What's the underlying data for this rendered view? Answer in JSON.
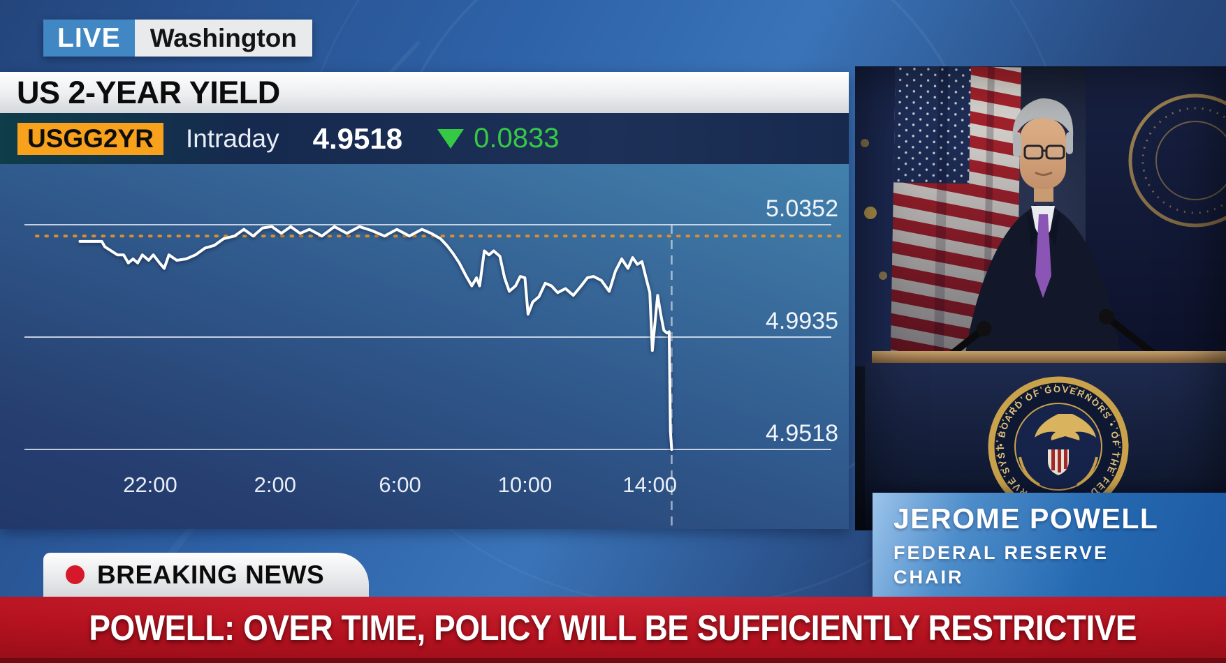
{
  "live_badge": {
    "live_label": "LIVE",
    "location": "Washington"
  },
  "chart_panel": {
    "title": "US 2-YEAR YIELD",
    "ticker_symbol": "USGG2YR",
    "series_mode": "Intraday",
    "last_price": "4.9518",
    "change": "0.0833",
    "change_direction": "down"
  },
  "chart_data": {
    "type": "line",
    "title": "US 2-YEAR YIELD (USGG2YR) Intraday",
    "legend": [
      "USGG2YR"
    ],
    "grid": "horizontal",
    "x_tick_labels": [
      "22:00",
      "2:00",
      "6:00",
      "10:00",
      "14:00"
    ],
    "x_tick_hours": [
      -2,
      2,
      6,
      10,
      14
    ],
    "y_tick_labels": [
      "5.0352",
      "4.9935",
      "4.9518"
    ],
    "y_ticks": [
      5.0352,
      4.9935,
      4.9518
    ],
    "ylim": [
      4.945,
      5.045
    ],
    "reference_dotted_level": 5.031,
    "last_value": 4.9518,
    "change_value": -0.0833,
    "series": [
      {
        "name": "USGG2YR",
        "points": [
          [
            -4.25,
            5.029
          ],
          [
            -3.55,
            5.029
          ],
          [
            -3.45,
            5.027
          ],
          [
            -3.05,
            5.024
          ],
          [
            -2.85,
            5.024
          ],
          [
            -2.7,
            5.021
          ],
          [
            -2.55,
            5.0225
          ],
          [
            -2.4,
            5.021
          ],
          [
            -2.25,
            5.024
          ],
          [
            -2.05,
            5.022
          ],
          [
            -1.9,
            5.024
          ],
          [
            -1.7,
            5.021
          ],
          [
            -1.55,
            5.019
          ],
          [
            -1.4,
            5.024
          ],
          [
            -1.15,
            5.022
          ],
          [
            -0.85,
            5.0225
          ],
          [
            -0.55,
            5.024
          ],
          [
            -0.25,
            5.0265
          ],
          [
            0.05,
            5.0275
          ],
          [
            0.35,
            5.03
          ],
          [
            0.7,
            5.031
          ],
          [
            1.0,
            5.0335
          ],
          [
            1.3,
            5.031
          ],
          [
            1.6,
            5.034
          ],
          [
            1.9,
            5.0345
          ],
          [
            2.2,
            5.032
          ],
          [
            2.5,
            5.0345
          ],
          [
            2.8,
            5.032
          ],
          [
            3.1,
            5.0335
          ],
          [
            3.5,
            5.031
          ],
          [
            3.9,
            5.0345
          ],
          [
            4.3,
            5.032
          ],
          [
            4.7,
            5.0345
          ],
          [
            5.1,
            5.033
          ],
          [
            5.5,
            5.031
          ],
          [
            5.9,
            5.0335
          ],
          [
            6.3,
            5.031
          ],
          [
            6.7,
            5.0335
          ],
          [
            7.0,
            5.032
          ],
          [
            7.3,
            5.03
          ],
          [
            7.5,
            5.0275
          ],
          [
            7.7,
            5.0245
          ],
          [
            7.9,
            5.021
          ],
          [
            8.1,
            5.0165
          ],
          [
            8.3,
            5.0125
          ],
          [
            8.45,
            5.0155
          ],
          [
            8.55,
            5.0125
          ],
          [
            8.7,
            5.0255
          ],
          [
            8.85,
            5.024
          ],
          [
            9.0,
            5.0255
          ],
          [
            9.2,
            5.0235
          ],
          [
            9.35,
            5.0155
          ],
          [
            9.5,
            5.0105
          ],
          [
            9.7,
            5.0125
          ],
          [
            9.85,
            5.016
          ],
          [
            10.0,
            5.0155
          ],
          [
            10.1,
            5.002
          ],
          [
            10.25,
            5.0065
          ],
          [
            10.45,
            5.0085
          ],
          [
            10.65,
            5.0135
          ],
          [
            10.85,
            5.0125
          ],
          [
            11.05,
            5.01
          ],
          [
            11.3,
            5.0115
          ],
          [
            11.55,
            5.009
          ],
          [
            11.8,
            5.0125
          ],
          [
            12.0,
            5.0155
          ],
          [
            12.2,
            5.016
          ],
          [
            12.45,
            5.0145
          ],
          [
            12.7,
            5.0105
          ],
          [
            12.9,
            5.018
          ],
          [
            13.1,
            5.0225
          ],
          [
            13.3,
            5.019
          ],
          [
            13.45,
            5.023
          ],
          [
            13.6,
            5.0205
          ],
          [
            13.75,
            5.0215
          ],
          [
            13.9,
            5.0145
          ],
          [
            14.0,
            5.01
          ],
          [
            14.08,
            4.9885
          ],
          [
            14.25,
            5.009
          ],
          [
            14.35,
            5.002
          ],
          [
            14.45,
            4.996
          ],
          [
            14.55,
            4.995
          ],
          [
            14.62,
            4.9955
          ],
          [
            14.66,
            4.9585
          ],
          [
            14.7,
            4.9518
          ]
        ]
      }
    ]
  },
  "video_panel": {
    "speaker_name": "JEROME POWELL",
    "speaker_title": "FEDERAL RESERVE",
    "speaker_role": "CHAIR",
    "seal_text": "• BOARD OF GOVERNORS • OF THE FEDERAL RESERVE SYSTEM"
  },
  "breaking_badge": {
    "label": "BREAKING NEWS"
  },
  "headline_banner": {
    "text": "POWELL: OVER TIME, POLICY WILL BE SUFFICIENTLY RESTRICTIVE"
  },
  "colors": {
    "accent_orange": "#F7A11C",
    "change_green": "#35C946",
    "banner_red": "#B5121F",
    "live_blue": "#4187C3",
    "lower_third_blue": "#2E6FB5",
    "chart_line": "#FFFFFF",
    "reference_line_orange": "#D8902F"
  }
}
